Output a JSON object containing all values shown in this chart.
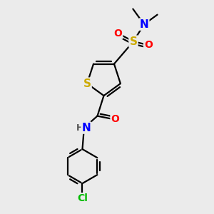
{
  "background_color": "#ebebeb",
  "atom_colors": {
    "S_ring": "#ccaa00",
    "S_sul": "#ccaa00",
    "N": "#0000ff",
    "O": "#ff0000",
    "Cl": "#00bb00",
    "C": "#000000",
    "H": "#555555"
  },
  "bond_color": "#000000",
  "bond_width": 1.6,
  "font_size_atom": 10,
  "font_size_methyl": 8.5
}
